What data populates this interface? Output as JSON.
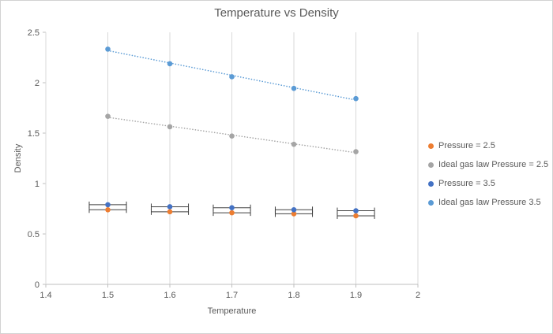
{
  "chart_data": {
    "type": "scatter",
    "title": "Temperature vs Density",
    "xlabel": "Temperature",
    "ylabel": "Density",
    "xlim": [
      1.4,
      2
    ],
    "ylim": [
      0,
      2.5
    ],
    "x_ticks": [
      1.4,
      1.5,
      1.6,
      1.7,
      1.8,
      1.9,
      2
    ],
    "x_tick_labels": [
      "1.4",
      "1.5",
      "1.6",
      "1.7",
      "1.8",
      "1.9",
      "2"
    ],
    "y_ticks": [
      0,
      0.5,
      1,
      1.5,
      2,
      2.5
    ],
    "y_tick_labels": [
      "0",
      "0.5",
      "1",
      "1.5",
      "2",
      "2.5"
    ],
    "grid": "vertical-major",
    "legend_position": "right",
    "series": [
      {
        "name": "Pressure = 2.5",
        "color": "#ED7D31",
        "marker": "circle",
        "x": [
          1.5,
          1.6,
          1.7,
          1.8,
          1.9
        ],
        "y": [
          0.74,
          0.72,
          0.71,
          0.7,
          0.68
        ],
        "x_error": 0.03
      },
      {
        "name": "Ideal gas law Pressure = 2.5",
        "color": "#A5A5A5",
        "marker": "circle",
        "x": [
          1.5,
          1.6,
          1.7,
          1.8,
          1.9
        ],
        "y": [
          1.667,
          1.563,
          1.471,
          1.389,
          1.316
        ],
        "trendline": true
      },
      {
        "name": "Pressure = 3.5",
        "color": "#4472C4",
        "marker": "circle",
        "x": [
          1.5,
          1.6,
          1.7,
          1.8,
          1.9
        ],
        "y": [
          0.79,
          0.77,
          0.76,
          0.74,
          0.73
        ],
        "x_error": 0.03
      },
      {
        "name": "Ideal gas law Pressure 3.5",
        "color": "#5B9BD5",
        "marker": "circle",
        "x": [
          1.5,
          1.6,
          1.7,
          1.8,
          1.9
        ],
        "y": [
          2.333,
          2.188,
          2.059,
          1.944,
          1.842
        ],
        "trendline": true
      }
    ]
  }
}
